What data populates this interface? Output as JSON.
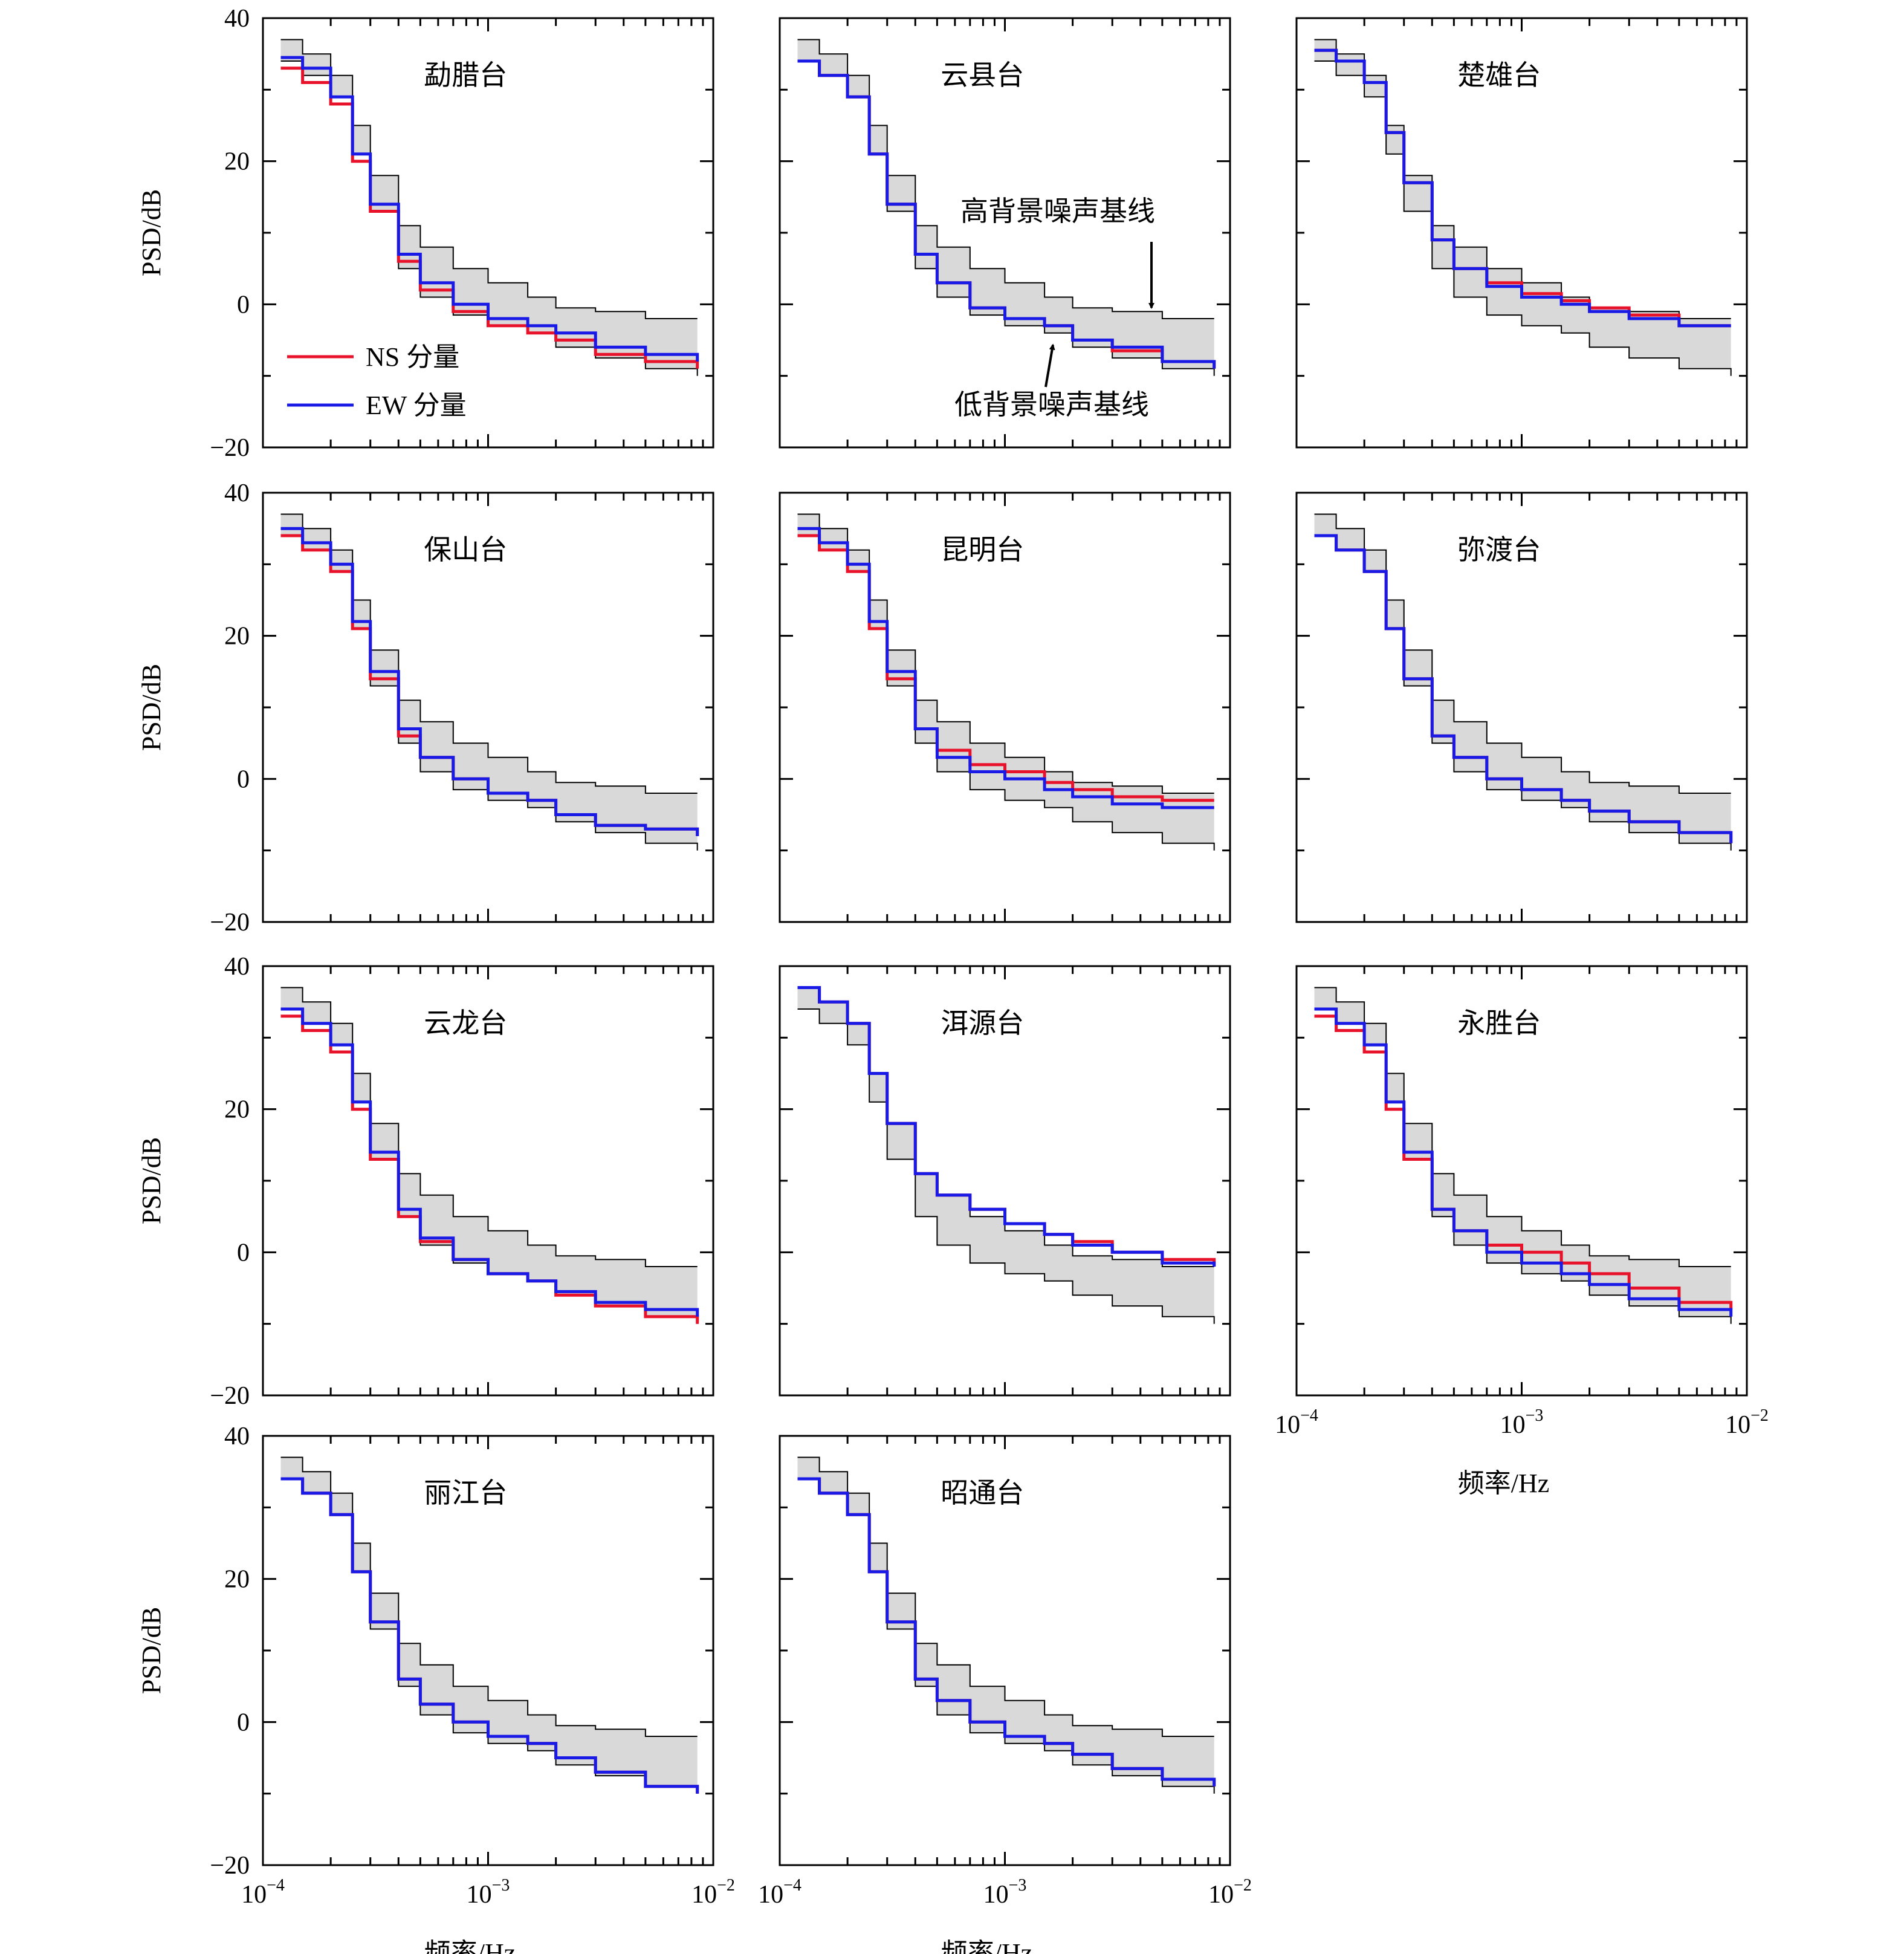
{
  "chart_data": {
    "type": "line",
    "x_scale": "log",
    "xlim": [
      0.0001,
      0.01
    ],
    "ylim": [
      -20,
      40
    ],
    "xlabel": "频率/Hz",
    "ylabel": "PSD/dB",
    "x_tick_labels": [
      "10",
      "10",
      "10"
    ],
    "x_tick_exponents": [
      "−4",
      "−3",
      "−2"
    ],
    "y_ticks": [
      -20,
      0,
      20,
      40
    ],
    "y_tick_labels": [
      "−20",
      "0",
      "20",
      "40"
    ],
    "legend": {
      "placement": "lower-left (panel 1)",
      "entries": [
        {
          "label": "NS  分量",
          "color": "#e8132a"
        },
        {
          "label": "EW  分量",
          "color": "#1a1ae6"
        }
      ]
    },
    "annotations": {
      "high": "高背景噪声基线",
      "low": "低背景噪声基线"
    },
    "colors": {
      "NS": "#e8132a",
      "EW": "#1a1ae6",
      "band_fill": "#d9d9d9",
      "band_edge": "#000000"
    },
    "series_x": [
      0.00012,
      0.00015,
      0.0002,
      0.00025,
      0.0003,
      0.0004,
      0.0005,
      0.0007,
      0.001,
      0.0015,
      0.002,
      0.003,
      0.005,
      0.0085
    ],
    "band_high": [
      37,
      35,
      32,
      25,
      18,
      11,
      8,
      5,
      3,
      1,
      -0.5,
      -1,
      -2,
      -2
    ],
    "band_low": [
      34,
      32,
      29,
      21,
      13,
      5,
      1,
      -1.5,
      -3,
      -4,
      -6,
      -7.5,
      -9,
      -10
    ],
    "panels": [
      {
        "title": "勐腊台",
        "ns": [
          33,
          31,
          28,
          20,
          13,
          6,
          2,
          -1,
          -3,
          -4,
          -5,
          -7,
          -8,
          -9
        ],
        "ew": [
          34.5,
          33,
          29,
          21,
          14,
          7,
          3,
          0,
          -2,
          -3,
          -4,
          -6,
          -7,
          -8
        ]
      },
      {
        "title": "云县台",
        "ns": [
          34,
          32,
          29,
          21,
          14,
          7,
          3,
          -0.5,
          -2,
          -3,
          -5,
          -6.5,
          -8,
          -9
        ],
        "ew": [
          34,
          32,
          29,
          21,
          14,
          7,
          3,
          -0.5,
          -2,
          -3,
          -5,
          -6,
          -8,
          -9
        ]
      },
      {
        "title": "楚雄台",
        "ns": [
          35.5,
          34,
          31,
          24,
          17,
          9,
          5,
          3,
          1.5,
          0.5,
          -0.5,
          -1.5,
          -3,
          -3
        ],
        "ew": [
          35.5,
          34,
          31,
          24,
          17,
          9,
          5,
          2.5,
          1,
          0,
          -1,
          -2,
          -3,
          -3
        ]
      },
      {
        "title": "保山台",
        "ns": [
          34,
          32,
          29,
          21,
          14,
          6,
          3,
          0,
          -2,
          -3,
          -5,
          -6.5,
          -7,
          -8
        ],
        "ew": [
          35,
          33,
          30,
          22,
          15,
          7,
          3,
          0,
          -2,
          -3,
          -5,
          -6.5,
          -7,
          -8
        ]
      },
      {
        "title": "昆明台",
        "ns": [
          34,
          32,
          29,
          21,
          14,
          7,
          4,
          2,
          1,
          -0.5,
          -1.5,
          -2.5,
          -3,
          -3
        ],
        "ew": [
          35,
          33,
          30,
          22,
          15,
          7,
          3,
          1,
          0,
          -1.5,
          -2.5,
          -3.5,
          -4,
          -4
        ]
      },
      {
        "title": "弥渡台",
        "ns": [
          34,
          32,
          29,
          21,
          14,
          6,
          3,
          0,
          -1.5,
          -3,
          -4.5,
          -6,
          -7.5,
          -9
        ],
        "ew": [
          34,
          32,
          29,
          21,
          14,
          6,
          3,
          0,
          -1.5,
          -3,
          -4.5,
          -6,
          -7.5,
          -9
        ]
      },
      {
        "title": "云龙台",
        "ns": [
          33,
          31,
          28,
          20,
          13,
          5,
          1.5,
          -1,
          -3,
          -4,
          -6,
          -7.5,
          -9,
          -10
        ],
        "ew": [
          34,
          32,
          29,
          21,
          14,
          6,
          2,
          -1,
          -3,
          -4,
          -5.5,
          -7,
          -8,
          -9
        ]
      },
      {
        "title": "洱源台",
        "ns": [
          37,
          35,
          32,
          25,
          18,
          11,
          8,
          6,
          4,
          2.5,
          1.5,
          0,
          -1,
          -2
        ],
        "ew": [
          37,
          35,
          32,
          25,
          18,
          11,
          8,
          6,
          4,
          2.5,
          1,
          0,
          -1.5,
          -2
        ]
      },
      {
        "title": "永胜台",
        "ns": [
          33,
          31,
          28,
          20,
          13,
          6,
          3,
          1,
          0,
          -1.5,
          -3,
          -5,
          -7,
          -8
        ],
        "ew": [
          34,
          32,
          29,
          21,
          14,
          6,
          3,
          0,
          -1.5,
          -3,
          -4.5,
          -6.5,
          -8,
          -9
        ]
      },
      {
        "title": "丽江台",
        "ns": [
          34,
          32,
          29,
          21,
          14,
          6,
          2.5,
          0,
          -2,
          -3,
          -5,
          -7,
          -9,
          -10
        ],
        "ew": [
          34,
          32,
          29,
          21,
          14,
          6,
          2.5,
          0,
          -2,
          -3,
          -5,
          -7,
          -9,
          -10
        ]
      },
      {
        "title": "昭通台",
        "ns": [
          34,
          32,
          29,
          21,
          14,
          6,
          3,
          0,
          -2,
          -3,
          -4.5,
          -6.5,
          -8,
          -9
        ],
        "ew": [
          34,
          32,
          29,
          21,
          14,
          6,
          3,
          0,
          -2,
          -3,
          -4.5,
          -6.5,
          -8,
          -9
        ]
      }
    ]
  }
}
